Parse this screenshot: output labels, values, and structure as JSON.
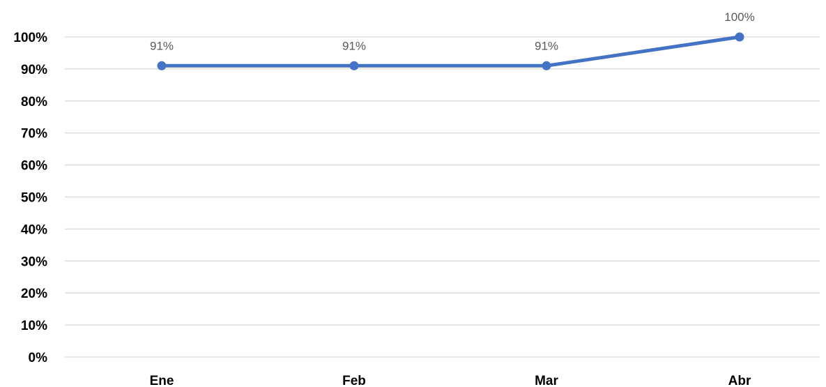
{
  "chart_data": {
    "type": "line",
    "title": "",
    "xlabel": "",
    "ylabel": "",
    "categories": [
      "Ene",
      "Feb",
      "Mar",
      "Abr"
    ],
    "series": [
      {
        "values": [
          91,
          91,
          91,
          100
        ],
        "data_labels": [
          "91%",
          "91%",
          "91%",
          "100%"
        ],
        "color": "#4472C4"
      }
    ],
    "ylim": [
      0,
      100
    ],
    "y_ticks": [
      0,
      10,
      20,
      30,
      40,
      50,
      60,
      70,
      80,
      90,
      100
    ],
    "y_tick_labels": [
      "0%",
      "10%",
      "20%",
      "30%",
      "40%",
      "50%",
      "60%",
      "70%",
      "80%",
      "90%",
      "100%"
    ],
    "grid": true,
    "legend": "none",
    "gridline_color": "#D9D9D9"
  }
}
